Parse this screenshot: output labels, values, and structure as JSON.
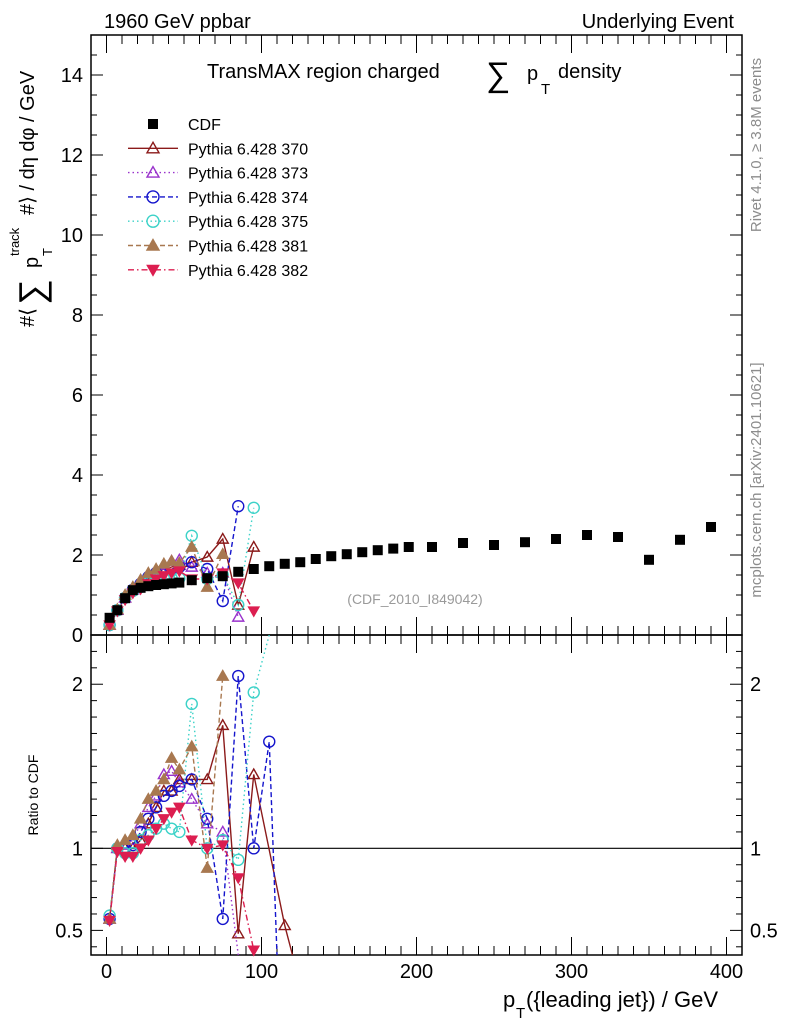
{
  "header": {
    "left": "1960 GeV ppbar",
    "right": "Underlying Event"
  },
  "side_text": {
    "version": "Rivet 4.1.0, ≥ 3.8M events",
    "site": "mcplots.cern.ch [arXiv:2401.10621]"
  },
  "chart_data": [
    {
      "type": "scatter",
      "panel": "main",
      "title": "TransMAX region charged ∑ p_T density",
      "title_parts": {
        "pre": "TransMAX region charged",
        "sum": "∑",
        "p": "p",
        "sub": "T",
        "post": "density"
      },
      "ylabel": "#⟨ ∑ p_T^track #⟩ / dη dφ / GeV",
      "ylabel_parts": {
        "lead": "#⟨",
        "sum": "∑",
        "p": "p",
        "sup": "track",
        "sub": "T",
        "mid": "#⟩ / dη dφ / GeV"
      },
      "xlim": [
        -10,
        410
      ],
      "ylim": [
        0,
        15
      ],
      "yticks": [
        "0",
        "2",
        "4",
        "6",
        "8",
        "10",
        "12",
        "14"
      ],
      "watermark": "(CDF_2010_I849042)",
      "legend_position": "top-left",
      "series": [
        {
          "name": "CDF",
          "color": "#000000",
          "marker": "square-filled",
          "line": "none",
          "x": [
            2,
            7,
            12,
            17,
            22,
            27,
            32,
            37,
            42,
            47,
            55,
            65,
            75,
            85,
            95,
            105,
            115,
            125,
            135,
            145,
            155,
            165,
            175,
            185,
            195,
            210,
            230,
            250,
            270,
            290,
            310,
            330,
            350,
            370,
            390
          ],
          "y": [
            0.43,
            0.62,
            0.92,
            1.12,
            1.18,
            1.22,
            1.25,
            1.27,
            1.29,
            1.31,
            1.37,
            1.42,
            1.47,
            1.58,
            1.65,
            1.72,
            1.78,
            1.82,
            1.9,
            1.97,
            2.02,
            2.07,
            2.12,
            2.16,
            2.2,
            2.2,
            2.3,
            2.25,
            2.32,
            2.4,
            2.5,
            2.45,
            1.88,
            2.38,
            2.7
          ]
        },
        {
          "name": "Pythia 6.428 370",
          "color": "#8B1A1A",
          "marker": "triangle-open",
          "line": "solid",
          "x": [
            2,
            7,
            12,
            17,
            22,
            27,
            32,
            37,
            42,
            47,
            55,
            65,
            75,
            85,
            95
          ],
          "y": [
            0.25,
            0.62,
            0.93,
            1.13,
            1.25,
            1.4,
            1.55,
            1.65,
            1.7,
            1.75,
            1.82,
            1.95,
            2.4,
            0.75,
            2.2
          ]
        },
        {
          "name": "Pythia 6.428 373",
          "color": "#9932CC",
          "marker": "triangle-open",
          "line": "dotted",
          "x": [
            2,
            7,
            12,
            17,
            22,
            27,
            32,
            37,
            42,
            47,
            55,
            65,
            75,
            85
          ],
          "y": [
            0.25,
            0.62,
            0.93,
            1.13,
            1.3,
            1.45,
            1.6,
            1.75,
            1.85,
            1.88,
            1.7,
            1.55,
            1.55,
            0.45
          ]
        },
        {
          "name": "Pythia 6.428 374",
          "color": "#1414CC",
          "marker": "circle-open",
          "line": "dashed",
          "x": [
            2,
            7,
            12,
            17,
            22,
            27,
            32,
            37,
            42,
            47,
            55,
            65,
            75,
            85
          ],
          "y": [
            0.25,
            0.62,
            0.93,
            1.13,
            1.28,
            1.45,
            1.55,
            1.62,
            1.65,
            1.7,
            1.82,
            1.65,
            0.85,
            3.22
          ]
        },
        {
          "name": "Pythia 6.428 375",
          "color": "#3CD2C8",
          "marker": "circle-open",
          "line": "dotted",
          "x": [
            2,
            7,
            12,
            17,
            22,
            27,
            32,
            37,
            42,
            47,
            55,
            65,
            75,
            85,
            95
          ],
          "y": [
            0.25,
            0.62,
            0.93,
            1.1,
            1.2,
            1.3,
            1.4,
            1.42,
            1.42,
            1.42,
            2.48,
            1.4,
            1.5,
            0.75,
            3.18
          ]
        },
        {
          "name": "Pythia 6.428 381",
          "color": "#A87850",
          "marker": "triangle-filled",
          "line": "dashed",
          "x": [
            2,
            7,
            12,
            17,
            22,
            27,
            32,
            37,
            42,
            47,
            55,
            65,
            75
          ],
          "y": [
            0.25,
            0.64,
            1.0,
            1.2,
            1.38,
            1.55,
            1.65,
            1.78,
            1.85,
            1.8,
            2.2,
            1.2,
            2.02
          ]
        },
        {
          "name": "Pythia 6.428 382",
          "color": "#DC1E50",
          "marker": "triangle-down-filled",
          "line": "dashdot",
          "x": [
            2,
            7,
            12,
            17,
            22,
            27,
            32,
            37,
            42,
            47,
            55,
            65,
            75,
            85,
            95
          ],
          "y": [
            0.25,
            0.6,
            0.88,
            1.05,
            1.15,
            1.28,
            1.4,
            1.48,
            1.55,
            1.6,
            1.4,
            1.4,
            1.55,
            1.3,
            0.6
          ]
        }
      ]
    },
    {
      "type": "line",
      "panel": "ratio",
      "ylabel": "Ratio to CDF",
      "xlabel": "p_T({leading jet}) / GeV",
      "xlabel_parts": {
        "p": "p",
        "sub": "T",
        "rest": "({leading jet}) / GeV"
      },
      "xlim": [
        -10,
        410
      ],
      "ylim": [
        0.35,
        2.3
      ],
      "yticks": [
        "0.5",
        "1",
        "2"
      ],
      "xticks": [
        "0",
        "100",
        "200",
        "300",
        "400"
      ],
      "reference_line": 1,
      "series": [
        {
          "name": "Pythia 6.428 370",
          "x": [
            2,
            7,
            12,
            17,
            22,
            27,
            32,
            37,
            42,
            47,
            55,
            65,
            75,
            85,
            95,
            115,
            120
          ],
          "y": [
            0.57,
            1.0,
            1.0,
            1.0,
            1.05,
            1.15,
            1.25,
            1.35,
            1.35,
            1.42,
            1.42,
            1.42,
            1.75,
            0.48,
            1.45,
            0.53,
            0.2
          ]
        },
        {
          "name": "Pythia 6.428 373",
          "x": [
            2,
            7,
            12,
            17,
            22,
            27,
            32,
            37,
            42,
            47,
            55,
            65,
            75,
            85
          ],
          "y": [
            0.57,
            1.0,
            1.02,
            1.05,
            1.15,
            1.25,
            1.32,
            1.45,
            1.47,
            1.4,
            1.3,
            1.15,
            1.1,
            0.25
          ]
        },
        {
          "name": "Pythia 6.428 374",
          "x": [
            2,
            7,
            12,
            17,
            22,
            27,
            32,
            37,
            42,
            47,
            55,
            65,
            75,
            85,
            95,
            105,
            110
          ],
          "y": [
            0.57,
            1.0,
            1.0,
            1.02,
            1.1,
            1.18,
            1.25,
            1.32,
            1.35,
            1.38,
            1.42,
            1.18,
            0.57,
            2.05,
            1.0,
            1.65,
            0.2
          ]
        },
        {
          "name": "Pythia 6.428 375",
          "x": [
            2,
            7,
            12,
            17,
            22,
            27,
            32,
            37,
            42,
            47,
            55,
            65,
            75,
            85,
            95,
            105
          ],
          "y": [
            0.59,
            1.0,
            0.97,
            0.97,
            1.05,
            1.08,
            1.12,
            1.15,
            1.12,
            1.1,
            1.88,
            1.0,
            1.05,
            0.93,
            1.95,
            2.3
          ]
        },
        {
          "name": "Pythia 6.428 381",
          "x": [
            2,
            7,
            12,
            17,
            22,
            27,
            32,
            37,
            42,
            47,
            55,
            65,
            75
          ],
          "y": [
            0.57,
            1.02,
            1.05,
            1.08,
            1.18,
            1.3,
            1.35,
            1.42,
            1.55,
            1.48,
            1.62,
            0.88,
            2.05
          ]
        },
        {
          "name": "Pythia 6.428 382",
          "x": [
            2,
            7,
            12,
            17,
            22,
            27,
            32,
            37,
            42,
            47,
            55,
            65,
            75,
            85,
            95
          ],
          "y": [
            0.56,
            0.98,
            0.95,
            0.95,
            1.0,
            1.05,
            1.12,
            1.18,
            1.22,
            1.25,
            1.05,
            1.0,
            1.02,
            0.82,
            0.38
          ]
        }
      ]
    }
  ]
}
